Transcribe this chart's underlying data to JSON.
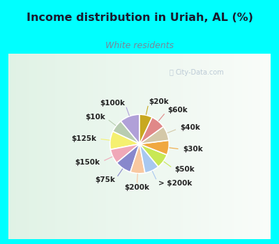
{
  "title": "Income distribution in Uriah, AL (%)",
  "subtitle": "White residents",
  "title_color": "#1a1a2e",
  "subtitle_color": "#778899",
  "background_cyan": "#00ffff",
  "background_chart": "#e0f2e9",
  "labels": [
    "$100k",
    "$10k",
    "$125k",
    "$150k",
    "$75k",
    "$200k",
    "> $200k",
    "$50k",
    "$30k",
    "$40k",
    "$60k",
    "$20k"
  ],
  "values": [
    11,
    7,
    10,
    8,
    9,
    8,
    8,
    8,
    8,
    8,
    8,
    7
  ],
  "colors": [
    "#b0a0d8",
    "#b8ccb0",
    "#f5f070",
    "#f0a8b8",
    "#8888cc",
    "#f8c8a0",
    "#a8c8f0",
    "#c8e855",
    "#f0a840",
    "#d4c8a8",
    "#e08888",
    "#c8a820"
  ],
  "line_colors": [
    "#b0a0d8",
    "#b8ccb0",
    "#f5f070",
    "#f0a8b8",
    "#8888cc",
    "#f8c8a0",
    "#a8c8f0",
    "#c8e855",
    "#f0a840",
    "#d4c8a8",
    "#e08888",
    "#c8a820"
  ],
  "watermark": "City-Data.com",
  "label_fontsize": 7.5,
  "title_fontsize": 11.5
}
